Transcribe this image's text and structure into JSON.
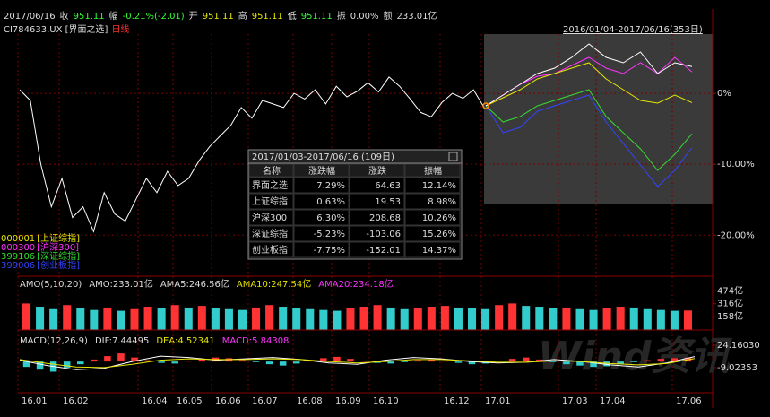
{
  "header": {
    "segments": [
      {
        "text": "2017/06/16",
        "color": "#dddddd"
      },
      {
        "text": "收",
        "color": "#dddddd"
      },
      {
        "text": "951.11",
        "color": "#33ff33"
      },
      {
        "text": "幅",
        "color": "#dddddd"
      },
      {
        "text": "-0.21%(-2.01)",
        "color": "#33ff33"
      },
      {
        "text": "开",
        "color": "#dddddd"
      },
      {
        "text": "951.11",
        "color": "#e6e600"
      },
      {
        "text": "高",
        "color": "#dddddd"
      },
      {
        "text": "951.11",
        "color": "#e6e600"
      },
      {
        "text": "低",
        "color": "#dddddd"
      },
      {
        "text": "951.11",
        "color": "#33ff33"
      },
      {
        "text": "振",
        "color": "#dddddd"
      },
      {
        "text": "0.00%",
        "color": "#dddddd"
      },
      {
        "text": "额",
        "color": "#dddddd"
      },
      {
        "text": "233.01亿",
        "color": "#dddddd"
      }
    ]
  },
  "subheader": {
    "segments": [
      {
        "text": "CI784633.UX [界面之选]",
        "color": "#dddddd"
      },
      {
        "text": "日线",
        "color": "#ff3333"
      }
    ]
  },
  "range_label": "2016/01/04-2017/06/16(353日)",
  "main_chart": {
    "type": "line",
    "ylim": [
      -25.4,
      8.1
    ],
    "yticks": [
      {
        "value": 0,
        "label": "0%"
      },
      {
        "value": -10,
        "label": "-10.00%"
      },
      {
        "value": -20,
        "label": "-20.00%"
      }
    ],
    "x_labels": [
      "16.01",
      "16.02",
      "16.04",
      "16.05",
      "16.06",
      "16.07",
      "16.08",
      "16.09",
      "16.10",
      "16.12",
      "17.01",
      "17.03",
      "17.04",
      "17.06"
    ],
    "series": [
      {
        "name": "界面之选",
        "color": "#ffffff",
        "values": [
          0.5,
          -1,
          -10,
          -16,
          -12,
          -17.5,
          -16,
          -19.5,
          -14,
          -17,
          -18,
          -15,
          -12,
          -14,
          -11,
          -13,
          -12,
          -9.5,
          -7.5,
          -6,
          -4.5,
          -2,
          -3.5,
          -1,
          -1.5,
          -2,
          0,
          -0.8,
          0.5,
          -1.5,
          1,
          -0.5,
          0.3,
          1.5,
          0.2,
          2.3,
          1,
          -0.8,
          -2.7,
          -3.3,
          -1.3,
          0,
          -0.7,
          0.5,
          -2
        ]
      }
    ]
  },
  "inset_chart": {
    "type": "line",
    "ylim": [
      -18,
      13
    ],
    "series": [
      {
        "name": "界面之选",
        "color": "#ffffff",
        "values": [
          0,
          2,
          4,
          6,
          7,
          9,
          11.5,
          9,
          8,
          10,
          6,
          8,
          7.3
        ]
      },
      {
        "name": "上证综指",
        "color": "#e6e600",
        "values": [
          0,
          1.5,
          3,
          5,
          6,
          7,
          8,
          5,
          3,
          1,
          0.5,
          2,
          0.6
        ]
      },
      {
        "name": "沪深300",
        "color": "#ff33ff",
        "values": [
          0,
          2,
          4,
          5.5,
          6,
          7.5,
          9,
          7,
          6,
          8,
          6,
          9,
          6.3
        ]
      },
      {
        "name": "深证综指",
        "color": "#33dd33",
        "values": [
          0,
          -3,
          -2,
          0,
          1,
          2,
          3,
          -2,
          -5,
          -8,
          -12,
          -9,
          -5.2
        ]
      },
      {
        "name": "创业板指",
        "color": "#3344ff",
        "values": [
          0,
          -5,
          -4,
          -1,
          0,
          1,
          2,
          -3,
          -7,
          -11,
          -15,
          -12,
          -7.75
        ]
      }
    ]
  },
  "legend": [
    {
      "code": "000001",
      "name": "[上证综指]",
      "color": "#e6e600"
    },
    {
      "code": "000300",
      "name": "[沪深300]",
      "color": "#ff33ff"
    },
    {
      "code": "399106",
      "name": "[深证综指]",
      "color": "#33dd33"
    },
    {
      "code": "399006",
      "name": "[创业板指]",
      "color": "#3344ff"
    }
  ],
  "table": {
    "title": "2017/01/03-2017/06/16 (109日)",
    "columns": [
      "名称",
      "涨跌幅",
      "涨跌",
      "振幅"
    ],
    "rows": [
      [
        "界面之选",
        "7.29%",
        "64.63",
        "12.14%"
      ],
      [
        "上证综指",
        "0.63%",
        "19.53",
        "8.98%"
      ],
      [
        "沪深300",
        "6.30%",
        "208.68",
        "10.26%"
      ],
      [
        "深证综指",
        "-5.23%",
        "-103.06",
        "15.26%"
      ],
      [
        "创业板指",
        "-7.75%",
        "-152.01",
        "14.37%"
      ]
    ]
  },
  "amo_chart": {
    "type": "bar",
    "header": [
      {
        "text": "AMO(5,10,20)",
        "color": "#dddddd"
      },
      {
        "text": "AMO:233.01亿",
        "color": "#dddddd"
      },
      {
        "text": "AMA5:246.56亿",
        "color": "#dddddd"
      },
      {
        "text": "AMA10:247.54亿",
        "color": "#e6e600"
      },
      {
        "text": "AMA20:234.18亿",
        "color": "#ff33ff"
      }
    ],
    "ylim": [
      0,
      588
    ],
    "yticks": [
      {
        "value": 474,
        "label": "474亿"
      },
      {
        "value": 316,
        "label": "316亿"
      },
      {
        "value": 158,
        "label": "158亿"
      }
    ],
    "values": [
      320,
      280,
      250,
      300,
      260,
      240,
      270,
      230,
      250,
      280,
      260,
      300,
      270,
      290,
      260,
      250,
      240,
      270,
      300,
      280,
      260,
      250,
      240,
      230,
      260,
      280,
      300,
      270,
      250,
      260,
      280,
      290,
      270,
      260,
      250,
      300,
      320,
      290,
      280,
      260,
      270,
      250,
      240,
      260,
      280,
      270,
      250,
      240,
      230,
      233
    ]
  },
  "macd_chart": {
    "type": "bar",
    "header": [
      {
        "text": "MACD(12,26,9)",
        "color": "#dddddd"
      },
      {
        "text": "DIF:7.44495",
        "color": "#dddddd"
      },
      {
        "text": "DEA:4.52341",
        "color": "#e6e600"
      },
      {
        "text": "MACD:5.84308",
        "color": "#ff33ff"
      }
    ],
    "ylim": [
      -44.9,
      36
    ],
    "yticks": [
      {
        "value": 24.1603,
        "label": "24.16030"
      },
      {
        "value": -9.02353,
        "label": "-9.02353"
      }
    ],
    "values": [
      -8,
      -12,
      -15,
      -9,
      -4,
      3,
      8,
      12,
      6,
      2,
      -2,
      -3,
      1,
      4,
      6,
      5,
      2,
      -1,
      -4,
      -6,
      -3,
      2,
      5,
      7,
      4,
      1,
      -2,
      -3,
      -1,
      2,
      3,
      1,
      -2,
      -4,
      -3,
      0,
      4,
      6,
      3,
      -1,
      -4,
      -6,
      -8,
      -7,
      -4,
      -1,
      2,
      4,
      5,
      5.8
    ],
    "series": [
      {
        "name": "DIF",
        "color": "#ffffff",
        "values": [
          2,
          -6,
          -12,
          -10,
          0,
          8,
          6,
          2,
          4,
          6,
          3,
          -2,
          -4,
          2,
          6,
          4,
          0,
          -2,
          -1,
          3,
          0,
          -5,
          -8,
          -2,
          7.4
        ]
      },
      {
        "name": "DEA",
        "color": "#e6e600",
        "values": [
          3,
          -3,
          -8,
          -9,
          -4,
          2,
          4,
          3,
          3,
          4,
          3,
          0,
          -2,
          0,
          3,
          3,
          1,
          -1,
          -1,
          1,
          0,
          -3,
          -5,
          -3,
          4.5
        ]
      }
    ]
  },
  "watermark": "Wind资讯"
}
